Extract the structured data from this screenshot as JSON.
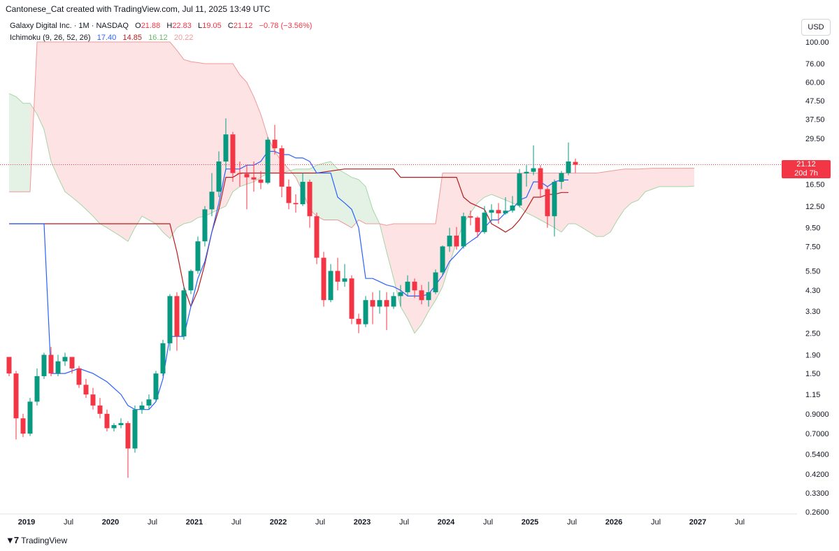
{
  "credit": "Cantonese_Cat created with TradingView.com, Jul 11, 2025 13:49 UTC",
  "legend": {
    "symbol": "Galaxy Digital Inc. · 1M · NASDAQ",
    "o_label": "O",
    "o": "21.88",
    "h_label": "H",
    "h": "22.83",
    "l_label": "L",
    "l": "19.05",
    "c_label": "C",
    "c": "21.12",
    "change": "−0.78 (−3.56%)",
    "indicator": "Ichimoku (9, 26, 52, 26)",
    "tenkan": "17.40",
    "kijun": "14.85",
    "span_a": "16.12",
    "span_b": "20.22"
  },
  "currency": "USD",
  "last_price": {
    "price": "21.12",
    "countdown": "20d 7h"
  },
  "brand": "TradingView",
  "colors": {
    "up": "#089981",
    "down": "#f23645",
    "tenkan": "#2962ff",
    "kijun": "#b71c1c",
    "span_a": "#a5d6a7",
    "span_b": "#ef9a9a",
    "cloud_bear": "#fde3e3",
    "cloud_bull": "#e3f2e5"
  },
  "chart_data": {
    "type": "candlestick",
    "y_scale": "log",
    "y_ticks": [
      "100.00",
      "76.00",
      "60.00",
      "47.50",
      "37.50",
      "29.50",
      "21.12",
      "16.50",
      "12.50",
      "9.50",
      "7.50",
      "5.50",
      "4.30",
      "3.30",
      "2.50",
      "1.90",
      "1.50",
      "1.15",
      "0.9000",
      "0.7000",
      "0.5400",
      "0.4200",
      "0.3300",
      "0.2600"
    ],
    "x_ticks": [
      "2019",
      "Jul",
      "2020",
      "Jul",
      "2021",
      "Jul",
      "2022",
      "Jul",
      "2023",
      "Jul",
      "2024",
      "Jul",
      "2025",
      "Jul",
      "2026",
      "Jul",
      "2027",
      "Jul"
    ],
    "start": "2018-12",
    "candles": [
      [
        1.85,
        1.5,
        1.85,
        1.45
      ],
      [
        1.5,
        0.85,
        1.55,
        0.65
      ],
      [
        0.85,
        0.7,
        0.9,
        0.67
      ],
      [
        0.7,
        1.05,
        1.1,
        0.68
      ],
      [
        1.05,
        1.45,
        1.6,
        1.0
      ],
      [
        1.45,
        1.9,
        1.95,
        1.4
      ],
      [
        1.9,
        1.5,
        2.1,
        1.45
      ],
      [
        1.5,
        1.75,
        1.9,
        1.45
      ],
      [
        1.75,
        1.85,
        1.95,
        1.65
      ],
      [
        1.85,
        1.6,
        1.85,
        1.5
      ],
      [
        1.6,
        1.3,
        1.65,
        1.25
      ],
      [
        1.3,
        1.15,
        1.4,
        1.1
      ],
      [
        1.15,
        1.0,
        1.25,
        0.95
      ],
      [
        1.0,
        0.9,
        1.1,
        0.85
      ],
      [
        0.9,
        0.75,
        0.95,
        0.72
      ],
      [
        0.75,
        0.78,
        0.8,
        0.72
      ],
      [
        0.78,
        0.8,
        0.85,
        0.75
      ],
      [
        0.8,
        0.58,
        0.82,
        0.4
      ],
      [
        0.58,
        0.95,
        1.0,
        0.55
      ],
      [
        0.95,
        1.0,
        1.05,
        0.9
      ],
      [
        1.0,
        1.08,
        1.15,
        0.95
      ],
      [
        1.08,
        1.5,
        1.55,
        1.05
      ],
      [
        1.5,
        2.2,
        2.3,
        1.45
      ],
      [
        2.2,
        4.0,
        4.1,
        2.0
      ],
      [
        4.0,
        2.4,
        4.2,
        2.0
      ],
      [
        2.4,
        4.3,
        4.5,
        2.3
      ],
      [
        4.3,
        5.5,
        5.6,
        4.1
      ],
      [
        5.5,
        8.0,
        8.5,
        5.3
      ],
      [
        8.0,
        12.0,
        12.5,
        7.5
      ],
      [
        12.0,
        15.0,
        19.0,
        11.0
      ],
      [
        15.0,
        22.0,
        25.0,
        14.0
      ],
      [
        22.0,
        31.0,
        38.0,
        20.0
      ],
      [
        31.0,
        19.0,
        32.0,
        17.0
      ],
      [
        19.0,
        18.8,
        22.0,
        16.0
      ],
      [
        18.8,
        18.0,
        21.0,
        12.0
      ],
      [
        18.0,
        17.5,
        22.0,
        15.0
      ],
      [
        17.5,
        16.8,
        19.5,
        15.5
      ],
      [
        16.8,
        29.0,
        30.0,
        16.5
      ],
      [
        29.0,
        26.0,
        35.0,
        24.0
      ],
      [
        26.0,
        16.0,
        27.0,
        14.0
      ],
      [
        16.0,
        13.0,
        17.5,
        12.0
      ],
      [
        13.0,
        12.8,
        14.5,
        11.5
      ],
      [
        12.8,
        17.0,
        19.0,
        12.5
      ],
      [
        17.0,
        11.0,
        17.5,
        9.5
      ],
      [
        11.0,
        6.5,
        11.5,
        6.0
      ],
      [
        6.5,
        3.8,
        7.0,
        3.5
      ],
      [
        3.8,
        5.5,
        6.0,
        3.7
      ],
      [
        5.5,
        4.8,
        6.5,
        4.3
      ],
      [
        4.8,
        5.0,
        6.0,
        4.5
      ],
      [
        5.0,
        3.0,
        5.2,
        2.8
      ],
      [
        3.0,
        2.8,
        3.2,
        2.5
      ],
      [
        2.8,
        3.8,
        4.0,
        2.7
      ],
      [
        3.8,
        3.5,
        4.2,
        2.8
      ],
      [
        3.5,
        3.8,
        4.3,
        3.2
      ],
      [
        3.8,
        3.5,
        4.2,
        2.6
      ],
      [
        3.5,
        4.0,
        4.2,
        3.4
      ],
      [
        4.0,
        4.2,
        4.6,
        3.5
      ],
      [
        4.2,
        4.8,
        5.2,
        4.0
      ],
      [
        4.8,
        4.3,
        5.0,
        3.9
      ],
      [
        4.3,
        3.8,
        4.6,
        3.6
      ],
      [
        3.8,
        4.2,
        4.8,
        3.5
      ],
      [
        4.2,
        5.4,
        5.6,
        4.1
      ],
      [
        5.4,
        7.5,
        7.6,
        5.2
      ],
      [
        7.5,
        8.6,
        9.5,
        7.0
      ],
      [
        8.6,
        7.5,
        9.6,
        7.2
      ],
      [
        7.5,
        11.0,
        11.5,
        7.3
      ],
      [
        11.0,
        10.8,
        11.8,
        9.8
      ],
      [
        10.8,
        9.0,
        11.0,
        8.4
      ],
      [
        9.0,
        11.5,
        12.5,
        8.8
      ],
      [
        11.5,
        11.9,
        12.8,
        10.3
      ],
      [
        11.9,
        11.4,
        13.0,
        10.0
      ],
      [
        11.4,
        11.8,
        14.0,
        11.2
      ],
      [
        11.8,
        12.6,
        14.2,
        11.5
      ],
      [
        12.6,
        18.9,
        20.0,
        12.3
      ],
      [
        18.9,
        19.3,
        21.0,
        16.0
      ],
      [
        19.3,
        20.2,
        27.0,
        18.5
      ],
      [
        20.2,
        15.5,
        21.0,
        14.0
      ],
      [
        15.5,
        11.0,
        16.0,
        9.5
      ],
      [
        11.0,
        17.0,
        17.5,
        8.5
      ],
      [
        17.0,
        19.0,
        19.5,
        15.5
      ],
      [
        19.0,
        22.0,
        28.0,
        18.5
      ],
      [
        21.88,
        21.12,
        22.83,
        19.05
      ]
    ],
    "tenkan": [
      [
        0,
        10.0
      ],
      [
        5,
        10.0
      ],
      [
        6,
        1.5
      ],
      [
        8,
        1.5
      ],
      [
        10,
        1.6
      ],
      [
        12,
        1.5
      ],
      [
        14,
        1.35
      ],
      [
        16,
        1.15
      ],
      [
        17,
        1.0
      ],
      [
        18,
        0.95
      ],
      [
        20,
        0.95
      ],
      [
        21,
        1.05
      ],
      [
        22,
        1.4
      ],
      [
        23,
        2.4
      ],
      [
        24,
        2.4
      ],
      [
        25,
        2.4
      ],
      [
        26,
        3.5
      ],
      [
        27,
        5.0
      ],
      [
        28,
        6.2
      ],
      [
        29,
        9.0
      ],
      [
        30,
        13.0
      ],
      [
        31,
        20.0
      ],
      [
        32,
        20.0
      ],
      [
        33,
        20.0
      ],
      [
        34,
        21.0
      ],
      [
        35,
        21.0
      ],
      [
        36,
        22.0
      ],
      [
        37,
        25.0
      ],
      [
        38,
        25.0
      ],
      [
        39,
        24.0
      ],
      [
        40,
        24.0
      ],
      [
        41,
        23.0
      ],
      [
        42,
        23.0
      ],
      [
        43,
        22.0
      ],
      [
        44,
        19.0
      ],
      [
        45,
        19.0
      ],
      [
        46,
        19.0
      ],
      [
        47,
        14.0
      ],
      [
        48,
        13.0
      ],
      [
        49,
        12.0
      ],
      [
        50,
        9.5
      ],
      [
        51,
        5.0
      ],
      [
        52,
        5.0
      ],
      [
        53,
        4.8
      ],
      [
        54,
        4.6
      ],
      [
        55,
        4.5
      ],
      [
        56,
        4.3
      ],
      [
        57,
        4.0
      ],
      [
        58,
        4.0
      ],
      [
        59,
        4.0
      ],
      [
        60,
        4.1
      ],
      [
        61,
        4.6
      ],
      [
        62,
        5.2
      ],
      [
        63,
        6.2
      ],
      [
        64,
        6.8
      ],
      [
        65,
        7.5
      ],
      [
        66,
        8.0
      ],
      [
        67,
        8.5
      ],
      [
        68,
        9.5
      ],
      [
        69,
        10.5
      ],
      [
        70,
        10.5
      ],
      [
        71,
        11.5
      ],
      [
        72,
        12.0
      ],
      [
        73,
        13.5
      ],
      [
        74,
        14.0
      ],
      [
        75,
        17.0
      ],
      [
        76,
        17.0
      ],
      [
        77,
        16.0
      ],
      [
        78,
        17.0
      ],
      [
        79,
        17.4
      ],
      [
        80,
        17.4
      ]
    ],
    "kijun": [
      [
        0,
        10.0
      ],
      [
        5,
        10.0
      ],
      [
        8,
        10.0
      ],
      [
        12,
        10.0
      ],
      [
        16,
        10.0
      ],
      [
        18,
        10.0
      ],
      [
        19,
        10.0
      ],
      [
        20,
        10.0
      ],
      [
        22,
        10.0
      ],
      [
        23,
        10.0
      ],
      [
        24,
        7.0
      ],
      [
        25,
        4.5
      ],
      [
        26,
        3.5
      ],
      [
        27,
        4.3
      ],
      [
        28,
        6.0
      ],
      [
        29,
        9.0
      ],
      [
        30,
        12.0
      ],
      [
        31,
        18.0
      ],
      [
        32,
        18.0
      ],
      [
        33,
        19.0
      ],
      [
        34,
        19.0
      ],
      [
        35,
        19.0
      ],
      [
        36,
        19.0
      ],
      [
        37,
        19.0
      ],
      [
        38,
        19.0
      ],
      [
        40,
        19.0
      ],
      [
        44,
        19.0
      ],
      [
        48,
        20.0
      ],
      [
        52,
        20.0
      ],
      [
        55,
        20.0
      ],
      [
        56,
        18.0
      ],
      [
        60,
        18.0
      ],
      [
        64,
        18.0
      ],
      [
        65,
        14.0
      ],
      [
        66,
        13.0
      ],
      [
        67,
        12.5
      ],
      [
        68,
        12.0
      ],
      [
        69,
        10.0
      ],
      [
        70,
        9.5
      ],
      [
        71,
        9.0
      ],
      [
        72,
        9.5
      ],
      [
        73,
        10.5
      ],
      [
        74,
        12.0
      ],
      [
        75,
        14.0
      ],
      [
        76,
        14.0
      ],
      [
        77,
        14.5
      ],
      [
        78,
        14.5
      ],
      [
        79,
        14.85
      ],
      [
        80,
        14.85
      ]
    ],
    "span_a": [
      [
        0,
        52
      ],
      [
        1,
        50
      ],
      [
        2,
        46
      ],
      [
        3,
        46
      ],
      [
        4,
        40
      ],
      [
        5,
        33
      ],
      [
        6,
        22
      ],
      [
        7,
        18
      ],
      [
        8,
        15
      ],
      [
        9,
        14
      ],
      [
        10,
        13
      ],
      [
        11,
        12
      ],
      [
        12,
        11
      ],
      [
        13,
        10
      ],
      [
        14,
        9.5
      ],
      [
        15,
        9.0
      ],
      [
        16,
        8.5
      ],
      [
        17,
        8.0
      ],
      [
        18,
        9.5
      ],
      [
        19,
        11.0
      ],
      [
        20,
        10.5
      ],
      [
        21,
        10.0
      ],
      [
        22,
        9.0
      ],
      [
        23,
        8.3
      ],
      [
        24,
        9.5
      ],
      [
        25,
        10.0
      ],
      [
        26,
        10.2
      ],
      [
        27,
        10.8
      ],
      [
        28,
        11.0
      ],
      [
        29,
        11.5
      ],
      [
        30,
        12.0
      ],
      [
        31,
        12.5
      ],
      [
        32,
        15.0
      ],
      [
        33,
        16.0
      ],
      [
        34,
        16.5
      ],
      [
        35,
        17.0
      ],
      [
        36,
        18.0
      ],
      [
        37,
        19.0
      ],
      [
        38,
        19.0
      ],
      [
        39,
        19.0
      ],
      [
        40,
        19.5
      ],
      [
        41,
        20.0
      ],
      [
        42,
        20.0
      ],
      [
        43,
        20.0
      ],
      [
        44,
        21.0
      ],
      [
        45,
        21.5
      ],
      [
        46,
        22.0
      ],
      [
        47,
        20.0
      ],
      [
        48,
        19.0
      ],
      [
        49,
        18.0
      ],
      [
        50,
        17.5
      ],
      [
        51,
        16.0
      ],
      [
        52,
        12.0
      ],
      [
        53,
        10.0
      ],
      [
        54,
        7.0
      ],
      [
        55,
        5.0
      ],
      [
        56,
        3.5
      ],
      [
        57,
        3.0
      ],
      [
        58,
        2.5
      ],
      [
        59,
        2.8
      ],
      [
        60,
        3.3
      ],
      [
        61,
        3.8
      ],
      [
        62,
        4.5
      ],
      [
        63,
        6.0
      ],
      [
        64,
        8.0
      ],
      [
        65,
        10.0
      ],
      [
        66,
        11.5
      ],
      [
        67,
        13.0
      ],
      [
        68,
        14.0
      ],
      [
        69,
        14.5
      ],
      [
        70,
        14.0
      ],
      [
        71,
        13.5
      ],
      [
        72,
        13.0
      ],
      [
        73,
        12.5
      ],
      [
        74,
        11.5
      ],
      [
        75,
        11.0
      ],
      [
        76,
        10.5
      ],
      [
        77,
        10.0
      ],
      [
        78,
        9.5
      ],
      [
        79,
        9.0
      ],
      [
        80,
        10.0
      ],
      [
        81,
        10.0
      ],
      [
        82,
        9.5
      ],
      [
        83,
        9.0
      ],
      [
        84,
        8.5
      ],
      [
        85,
        8.5
      ],
      [
        86,
        9.0
      ],
      [
        87,
        10.5
      ],
      [
        88,
        12.0
      ],
      [
        89,
        13.0
      ],
      [
        90,
        13.5
      ],
      [
        91,
        15.0
      ],
      [
        92,
        15.5
      ],
      [
        93,
        16.0
      ],
      [
        94,
        16.0
      ],
      [
        95,
        16.0
      ],
      [
        96,
        16.0
      ],
      [
        97,
        16.0
      ],
      [
        98,
        16.12
      ]
    ],
    "span_b": [
      [
        0,
        15
      ],
      [
        2,
        15
      ],
      [
        3,
        15
      ],
      [
        4,
        100
      ],
      [
        5,
        100
      ],
      [
        6,
        100
      ],
      [
        7,
        100
      ],
      [
        8,
        100
      ],
      [
        9,
        100
      ],
      [
        10,
        100
      ],
      [
        11,
        100
      ],
      [
        12,
        100
      ],
      [
        13,
        100
      ],
      [
        14,
        100
      ],
      [
        15,
        100
      ],
      [
        16,
        100
      ],
      [
        17,
        100
      ],
      [
        18,
        100
      ],
      [
        19,
        100
      ],
      [
        20,
        100
      ],
      [
        22,
        100
      ],
      [
        23,
        100
      ],
      [
        24,
        90
      ],
      [
        25,
        80
      ],
      [
        26,
        78
      ],
      [
        27,
        77
      ],
      [
        28,
        76
      ],
      [
        29,
        76
      ],
      [
        30,
        76
      ],
      [
        31,
        76
      ],
      [
        32,
        76
      ],
      [
        33,
        66
      ],
      [
        34,
        60
      ],
      [
        35,
        50
      ],
      [
        36,
        40
      ],
      [
        37,
        30
      ],
      [
        38,
        25
      ],
      [
        39,
        22
      ],
      [
        40,
        20
      ],
      [
        41,
        18
      ],
      [
        42,
        15
      ],
      [
        43,
        12
      ],
      [
        44,
        11
      ],
      [
        45,
        10.5
      ],
      [
        46,
        10.5
      ],
      [
        47,
        10.5
      ],
      [
        48,
        10.0
      ],
      [
        49,
        9.5
      ],
      [
        50,
        10.5
      ],
      [
        51,
        10.0
      ],
      [
        52,
        10.0
      ],
      [
        53,
        10.0
      ],
      [
        54,
        9.8
      ],
      [
        55,
        10.0
      ],
      [
        56,
        10.0
      ],
      [
        57,
        10.0
      ],
      [
        58,
        10.0
      ],
      [
        59,
        10.0
      ],
      [
        60,
        10.0
      ],
      [
        61,
        10.0
      ],
      [
        62,
        19.0
      ],
      [
        63,
        19.0
      ],
      [
        64,
        19.0
      ],
      [
        65,
        19.0
      ],
      [
        66,
        19.0
      ],
      [
        67,
        19.0
      ],
      [
        68,
        19.0
      ],
      [
        69,
        19.0
      ],
      [
        70,
        19.0
      ],
      [
        72,
        19.0
      ],
      [
        74,
        19.0
      ],
      [
        76,
        19.0
      ],
      [
        78,
        19.0
      ],
      [
        80,
        19.0
      ],
      [
        82,
        19.0
      ],
      [
        84,
        19.0
      ],
      [
        86,
        19.5
      ],
      [
        88,
        20.0
      ],
      [
        90,
        20.0
      ],
      [
        92,
        20.2
      ],
      [
        94,
        20.2
      ],
      [
        96,
        20.2
      ],
      [
        98,
        20.22
      ]
    ]
  }
}
